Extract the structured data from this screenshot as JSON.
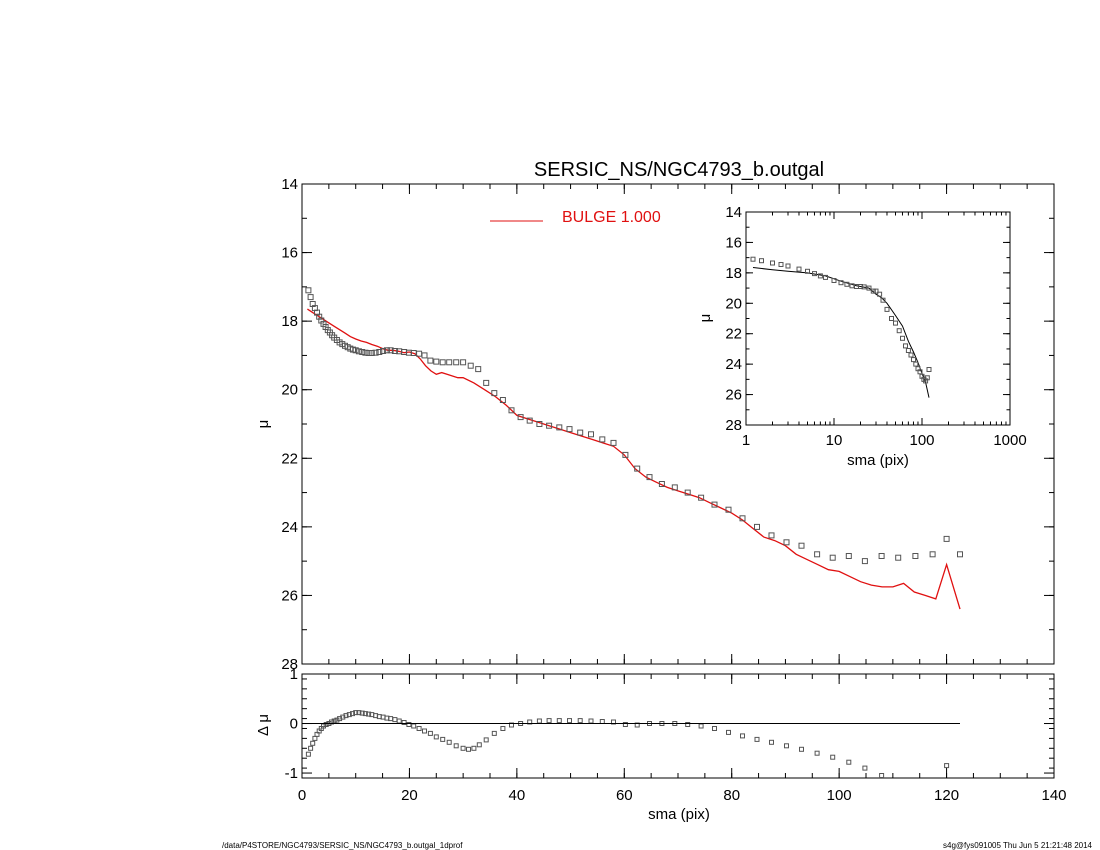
{
  "title": "SERSIC_NS/NGC4793_b.outgal",
  "footer_left": "/data/P4STORE/NGC4793/SERSIC_NS/NGC4793_b.outgal_1dprof",
  "footer_right": "s4g@fys091005  Thu Jun  5 21:21:48 2014",
  "colors": {
    "model": "#e01010",
    "data": "#555555",
    "axes": "#000000"
  },
  "chart_data": [
    {
      "id": "main",
      "type": "scatter",
      "title": "SERSIC_NS/NGC4793_b.outgal",
      "xlabel": "",
      "ylabel": "μ",
      "xlim": [
        0,
        140
      ],
      "ylim": [
        28,
        14
      ],
      "y_reversed": true,
      "xticks": [
        0,
        20,
        40,
        60,
        80,
        100,
        120,
        140
      ],
      "yticks": [
        14,
        16,
        18,
        20,
        22,
        24,
        26,
        28
      ],
      "legend": {
        "label": "BULGE  1.000",
        "placement": "top-center"
      },
      "series": [
        {
          "name": "BULGE  1.000",
          "kind": "line",
          "color": "#e01010",
          "x": [
            1,
            2,
            3,
            4,
            5,
            6,
            7,
            8,
            9,
            10,
            11,
            12,
            13,
            14,
            15,
            16,
            17,
            18,
            19,
            20,
            21,
            22,
            23,
            24,
            25,
            26,
            27,
            28,
            29,
            30,
            32,
            34,
            36,
            38,
            40,
            42,
            44,
            46,
            48,
            50,
            52,
            54,
            56,
            58,
            60,
            62,
            64,
            66,
            68,
            70,
            72,
            74,
            76,
            78,
            80,
            82,
            84,
            86,
            88,
            90,
            92,
            94,
            96,
            98,
            100,
            102,
            104,
            106,
            108,
            110,
            112,
            114,
            116,
            118,
            120,
            122.5
          ],
          "y": [
            17.65,
            17.75,
            17.85,
            17.95,
            18.05,
            18.15,
            18.25,
            18.35,
            18.45,
            18.52,
            18.58,
            18.62,
            18.68,
            18.73,
            18.8,
            18.85,
            18.85,
            18.88,
            18.92,
            18.9,
            18.95,
            19.1,
            19.3,
            19.45,
            19.55,
            19.5,
            19.55,
            19.6,
            19.65,
            19.65,
            19.8,
            20.0,
            20.2,
            20.45,
            20.75,
            20.85,
            20.95,
            21.05,
            21.15,
            21.25,
            21.35,
            21.45,
            21.55,
            21.65,
            21.9,
            22.3,
            22.55,
            22.7,
            22.85,
            22.95,
            23.05,
            23.15,
            23.3,
            23.45,
            23.6,
            23.8,
            24.05,
            24.3,
            24.4,
            24.55,
            24.8,
            24.95,
            25.1,
            25.25,
            25.3,
            25.45,
            25.6,
            25.7,
            25.75,
            25.75,
            25.65,
            25.9,
            26.0,
            26.1,
            25.1,
            26.4
          ]
        },
        {
          "name": "",
          "kind": "points",
          "color": "#555555",
          "x": [
            1.2,
            1.6,
            2.0,
            2.4,
            2.8,
            3.2,
            3.6,
            4.0,
            4.4,
            4.8,
            5.2,
            5.6,
            6.0,
            6.5,
            7.0,
            7.5,
            8.0,
            8.5,
            9.0,
            9.5,
            10.0,
            10.6,
            11.2,
            11.8,
            12.4,
            13.0,
            13.7,
            14.4,
            15.1,
            15.8,
            16.5,
            17.3,
            18.1,
            19.0,
            19.9,
            20.8,
            21.8,
            22.8,
            23.9,
            25.0,
            26.2,
            27.4,
            28.7,
            30.0,
            31.4,
            32.8,
            34.3,
            35.8,
            37.4,
            39.0,
            40.7,
            42.4,
            44.2,
            46.0,
            47.9,
            49.8,
            51.8,
            53.8,
            55.9,
            58.0,
            60.2,
            62.4,
            64.7,
            67.0,
            69.4,
            71.8,
            74.3,
            76.8,
            79.4,
            82.0,
            84.7,
            87.4,
            90.2,
            93.0,
            95.9,
            98.8,
            101.8,
            104.8,
            107.9,
            111.0,
            114.2,
            117.4,
            120.0,
            122.5
          ],
          "y": [
            17.1,
            17.3,
            17.5,
            17.62,
            17.75,
            17.87,
            17.98,
            18.08,
            18.17,
            18.26,
            18.33,
            18.41,
            18.48,
            18.55,
            18.62,
            18.67,
            18.72,
            18.76,
            18.8,
            18.83,
            18.85,
            18.88,
            18.9,
            18.92,
            18.93,
            18.93,
            18.92,
            18.9,
            18.87,
            18.85,
            18.85,
            18.87,
            18.88,
            18.9,
            18.92,
            18.93,
            18.95,
            19.0,
            19.15,
            19.18,
            19.2,
            19.2,
            19.2,
            19.2,
            19.3,
            19.4,
            19.8,
            20.1,
            20.3,
            20.6,
            20.8,
            20.9,
            21.0,
            21.05,
            21.1,
            21.15,
            21.25,
            21.3,
            21.45,
            21.55,
            21.9,
            22.3,
            22.55,
            22.75,
            22.85,
            23.0,
            23.15,
            23.35,
            23.5,
            23.75,
            24.0,
            24.25,
            24.45,
            24.55,
            24.8,
            24.9,
            24.85,
            25.0,
            24.85,
            24.9,
            24.85,
            24.8,
            24.35,
            24.8
          ]
        }
      ]
    },
    {
      "id": "inset",
      "type": "scatter",
      "xlabel": "sma (pix)",
      "ylabel": "μ",
      "xscale": "log",
      "xlim": [
        1,
        1000
      ],
      "ylim": [
        28,
        14
      ],
      "y_reversed": true,
      "xticks": [
        1,
        10,
        100,
        1000
      ],
      "yticks": [
        14,
        16,
        18,
        20,
        22,
        24,
        26,
        28
      ],
      "series": [
        {
          "name": "",
          "kind": "line",
          "color": "#000000",
          "x": [
            1.2,
            2,
            3,
            5,
            8,
            12,
            18,
            25,
            30,
            35,
            40,
            50,
            60,
            70,
            80,
            90,
            100,
            110,
            120
          ],
          "y": [
            17.65,
            17.8,
            17.9,
            18.0,
            18.2,
            18.55,
            18.85,
            19.0,
            19.4,
            19.65,
            20.0,
            20.8,
            21.5,
            22.5,
            23.2,
            23.9,
            24.6,
            25.2,
            26.2
          ]
        },
        {
          "name": "",
          "kind": "points",
          "color": "#555555",
          "x": [
            1.2,
            1.5,
            2,
            2.5,
            3,
            4,
            5,
            6,
            7,
            8,
            10,
            12,
            14,
            16,
            18,
            20,
            22,
            25,
            28,
            30,
            33,
            36,
            40,
            45,
            50,
            55,
            60,
            65,
            70,
            75,
            80,
            85,
            90,
            95,
            100,
            105,
            110,
            115,
            120
          ],
          "y": [
            17.1,
            17.2,
            17.35,
            17.45,
            17.55,
            17.75,
            17.9,
            18.05,
            18.2,
            18.3,
            18.5,
            18.65,
            18.75,
            18.85,
            18.9,
            18.9,
            18.92,
            19.0,
            19.2,
            19.2,
            19.4,
            19.8,
            20.4,
            21.0,
            21.3,
            21.8,
            22.3,
            22.8,
            23.1,
            23.4,
            23.7,
            24.0,
            24.3,
            24.5,
            24.8,
            25.0,
            25.1,
            24.9,
            24.35
          ]
        }
      ]
    },
    {
      "id": "residual",
      "type": "scatter",
      "xlabel": "sma (pix)",
      "ylabel": "Δ μ",
      "xlim": [
        0,
        140
      ],
      "ylim": [
        -1.1,
        1
      ],
      "xticks": [
        0,
        20,
        40,
        60,
        80,
        100,
        120,
        140
      ],
      "yticks": [
        -1,
        0,
        1
      ],
      "series": [
        {
          "name": "",
          "kind": "points",
          "color": "#555555",
          "x": [
            1.2,
            1.6,
            2.0,
            2.4,
            2.8,
            3.2,
            3.6,
            4.0,
            4.5,
            5.0,
            5.5,
            6.0,
            6.5,
            7.0,
            7.6,
            8.2,
            8.8,
            9.4,
            10.0,
            10.6,
            11.2,
            11.8,
            12.4,
            13.0,
            13.7,
            14.4,
            15.1,
            15.8,
            16.5,
            17.3,
            18.1,
            19.0,
            19.9,
            20.8,
            21.8,
            22.8,
            23.9,
            25.0,
            26.2,
            27.4,
            28.7,
            30.0,
            31.0,
            32.0,
            33.0,
            34.3,
            35.8,
            37.4,
            39.0,
            40.7,
            42.4,
            44.2,
            46.0,
            47.9,
            49.8,
            51.8,
            53.8,
            55.9,
            58.0,
            60.2,
            62.4,
            64.7,
            67.0,
            69.4,
            71.8,
            74.3,
            76.8,
            79.4,
            82.0,
            84.7,
            87.4,
            90.2,
            93.0,
            95.9,
            98.8,
            101.8,
            104.8,
            107.9,
            120.0
          ],
          "y": [
            -0.62,
            -0.5,
            -0.4,
            -0.3,
            -0.22,
            -0.15,
            -0.1,
            -0.05,
            -0.02,
            0.0,
            0.03,
            0.05,
            0.07,
            0.1,
            0.13,
            0.16,
            0.18,
            0.2,
            0.22,
            0.22,
            0.21,
            0.2,
            0.19,
            0.18,
            0.16,
            0.14,
            0.13,
            0.11,
            0.1,
            0.08,
            0.05,
            0.02,
            -0.02,
            -0.05,
            -0.1,
            -0.15,
            -0.2,
            -0.27,
            -0.32,
            -0.38,
            -0.45,
            -0.5,
            -0.52,
            -0.5,
            -0.43,
            -0.33,
            -0.2,
            -0.1,
            -0.03,
            0.0,
            0.03,
            0.05,
            0.06,
            0.06,
            0.06,
            0.06,
            0.05,
            0.04,
            0.03,
            -0.02,
            -0.03,
            0.0,
            0.0,
            0.0,
            -0.02,
            -0.05,
            -0.1,
            -0.18,
            -0.25,
            -0.32,
            -0.38,
            -0.45,
            -0.52,
            -0.6,
            -0.68,
            -0.78,
            -0.9,
            -1.05,
            -0.85
          ]
        }
      ]
    }
  ]
}
